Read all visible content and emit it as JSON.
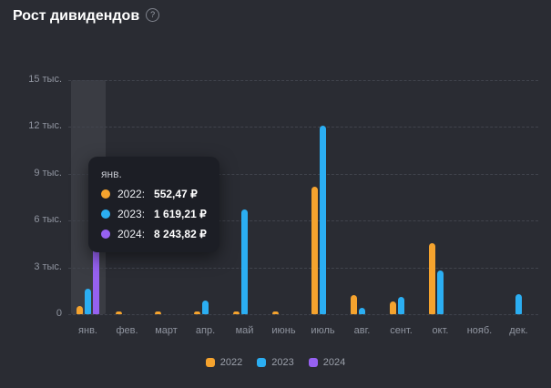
{
  "page": {
    "title": "Рост дивидендов",
    "help_glyph": "?"
  },
  "colors": {
    "background": "#2A2C33",
    "tooltip_background": "#1C1E25",
    "grid": "#41444D",
    "axis_text": "#9095A0",
    "highlight_band": "rgba(255,255,255,0.08)",
    "series_2022": "#F5A32E",
    "series_2023": "#2BAEF2",
    "series_2024": "#9661F1"
  },
  "chart_data": {
    "type": "bar",
    "title": "Рост дивидендов",
    "categories": [
      "янв.",
      "фев.",
      "март",
      "апр.",
      "май",
      "июнь",
      "июль",
      "авг.",
      "сент.",
      "окт.",
      "нояб.",
      "дек."
    ],
    "series": [
      {
        "name": "2022",
        "color": "#F5A32E",
        "values": [
          552.47,
          120,
          100,
          150,
          150,
          200,
          8150,
          1250,
          820,
          4550,
          0,
          0
        ]
      },
      {
        "name": "2023",
        "color": "#2BAEF2",
        "values": [
          1619.21,
          0,
          0,
          850,
          6700,
          0,
          12100,
          420,
          1100,
          2800,
          0,
          1300
        ]
      },
      {
        "name": "2024",
        "color": "#9661F1",
        "values": [
          8243.82,
          0,
          0,
          0,
          0,
          0,
          0,
          0,
          0,
          0,
          0,
          0
        ]
      }
    ],
    "ylim": [
      0,
      15000
    ],
    "ytick_values": [
      0,
      3000,
      6000,
      9000,
      12000,
      15000
    ],
    "ytick_labels": [
      "0",
      "3 тыс.",
      "6 тыс.",
      "9 тыс.",
      "12 тыс.",
      "15 тыс."
    ],
    "grid": true,
    "legend_position": "bottom",
    "highlighted_category": "янв."
  },
  "tooltip": {
    "header": "янв.",
    "rows": [
      {
        "label": "2022:",
        "value": "552,47 ₽",
        "color": "#F5A32E"
      },
      {
        "label": "2023:",
        "value": "1 619,21 ₽",
        "color": "#2BAEF2"
      },
      {
        "label": "2024:",
        "value": "8 243,82 ₽",
        "color": "#9661F1"
      }
    ]
  },
  "legend": {
    "items": [
      {
        "label": "2022",
        "color": "#F5A32E"
      },
      {
        "label": "2023",
        "color": "#2BAEF2"
      },
      {
        "label": "2024",
        "color": "#9661F1"
      }
    ]
  }
}
